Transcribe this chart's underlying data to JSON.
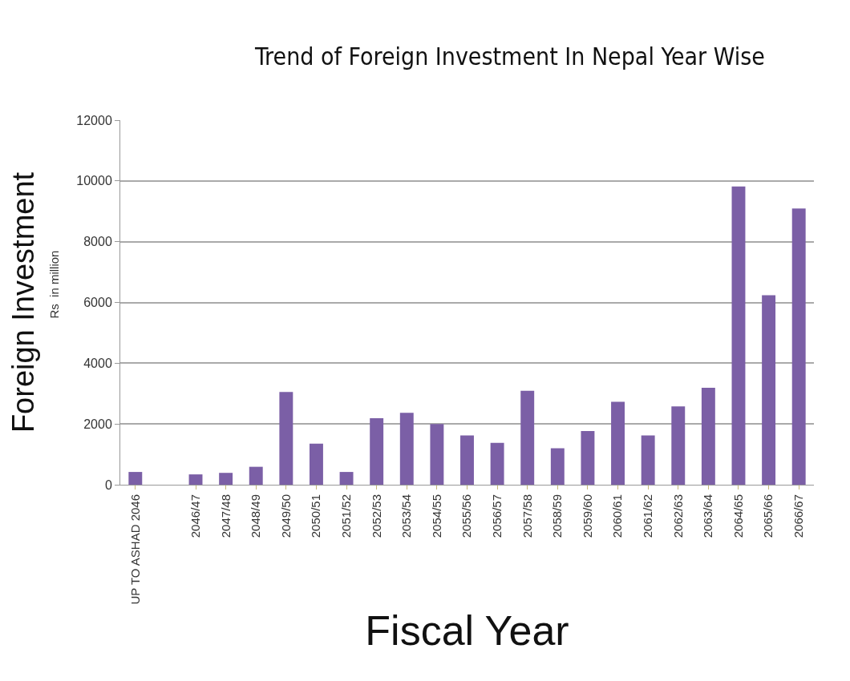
{
  "chart_data": {
    "type": "bar",
    "title": "Trend of Foreign Investment In Nepal Year Wise",
    "xlabel": "Fiscal Year",
    "ylabel": "Foreign Investment",
    "annotations": [
      "Rs  in million"
    ],
    "categories": [
      "UP TO ASHAD 2046",
      null,
      "2046/47",
      "2047/48",
      "2048/49",
      "2049/50",
      "2050/51",
      "2051/52",
      "2052/53",
      "2053/54",
      "2054/55",
      "2055/56",
      "2056/57",
      "2057/58",
      "2058/59",
      "2059/60",
      "2060/61",
      "2061/62",
      "2062/63",
      "2063/64",
      "2064/65",
      "2065/66",
      "2066/67"
    ],
    "values": [
      420,
      null,
      340,
      390,
      590,
      3050,
      1350,
      420,
      2190,
      2370,
      2000,
      1620,
      1380,
      3090,
      1200,
      1770,
      2730,
      1620,
      2580,
      3190,
      9820,
      6240,
      9090
    ],
    "color": "#7b5fa6",
    "ylim": [
      0,
      12000
    ],
    "yticks": [
      0,
      2000,
      4000,
      6000,
      8000,
      10000,
      12000
    ],
    "grid": "y",
    "legend": false
  }
}
